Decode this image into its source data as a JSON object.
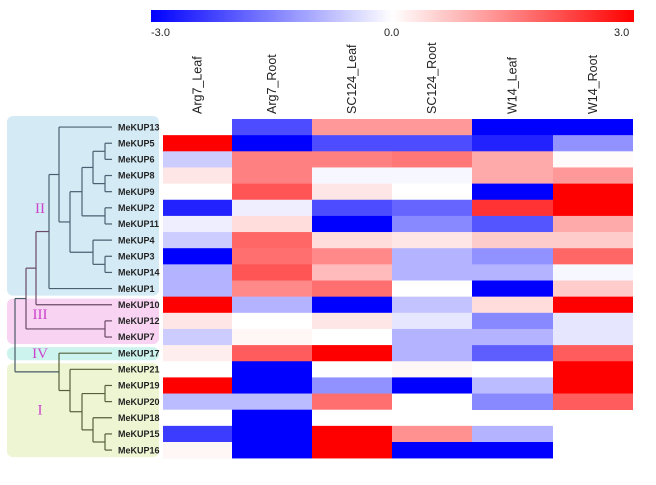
{
  "chart_data": {
    "type": "heatmap",
    "title": "",
    "colorbar": {
      "min": -3.0,
      "max": 3.0,
      "tick_labels": [
        "-3.0",
        "0.0",
        "3.0"
      ],
      "tick_values": [
        -3.0,
        0.0,
        3.0
      ],
      "low_color": "#0000ff",
      "mid_color": "#ffffff",
      "high_color": "#ff0000",
      "placement": "top"
    },
    "columns": [
      "Arg7_Leaf",
      "Arg7_Root",
      "SC124_Leaf",
      "SC124_Root",
      "W14_Leaf",
      "W14_Root"
    ],
    "rows": [
      "MeKUP13",
      "MeKUP5",
      "MeKUP6",
      "MeKUP8",
      "MeKUP9",
      "MeKUP2",
      "MeKUP11",
      "MeKUP4",
      "MeKUP3",
      "MeKUP14",
      "MeKUP1",
      "MeKUP10",
      "MeKUP12",
      "MeKUP7",
      "MeKUP17",
      "MeKUP21",
      "MeKUP19",
      "MeKUP20",
      "MeKUP18",
      "MeKUP15",
      "MeKUP16"
    ],
    "values": [
      [
        null,
        -2.1,
        1.2,
        1.2,
        -3.0,
        -3.0
      ],
      [
        3.0,
        -3.0,
        -2.1,
        -2.1,
        -2.6,
        -1.3
      ],
      [
        -0.6,
        1.5,
        1.5,
        1.6,
        1.0,
        0.05
      ],
      [
        0.3,
        1.5,
        -0.1,
        -0.1,
        1.0,
        1.2
      ],
      [
        0.0,
        2.0,
        0.3,
        0.0,
        -3.0,
        3.0
      ],
      [
        -2.6,
        -0.2,
        -2.1,
        -1.8,
        2.4,
        3.0
      ],
      [
        -0.2,
        0.4,
        -3.0,
        -1.4,
        -2.0,
        1.0
      ],
      [
        -0.6,
        1.8,
        0.4,
        0.3,
        0.6,
        0.6
      ],
      [
        -3.0,
        1.7,
        1.4,
        -0.9,
        -1.3,
        1.8
      ],
      [
        -0.9,
        2.0,
        0.8,
        -0.9,
        -0.9,
        -0.1
      ],
      [
        -0.9,
        1.4,
        1.7,
        0.0,
        -3.0,
        0.6
      ],
      [
        3.0,
        -0.9,
        -3.0,
        -0.7,
        0.4,
        3.0
      ],
      [
        0.3,
        0.0,
        0.3,
        -0.3,
        -1.4,
        -0.3
      ],
      [
        -0.6,
        0.1,
        0.0,
        -0.9,
        -0.9,
        -0.3
      ],
      [
        0.2,
        1.9,
        3.0,
        -0.9,
        -1.9,
        1.9
      ],
      [
        0.0,
        -3.0,
        0.0,
        0.1,
        0.0,
        3.0
      ],
      [
        3.0,
        -3.0,
        -1.3,
        -3.0,
        -0.8,
        3.0
      ],
      [
        -0.8,
        -0.8,
        1.7,
        0.0,
        -1.4,
        1.9
      ],
      [
        0.0,
        -3.0,
        0.0,
        null,
        null,
        null
      ],
      [
        -2.3,
        -3.0,
        3.0,
        1.3,
        -0.9,
        null
      ],
      [
        0.1,
        -3.0,
        3.0,
        -3.0,
        -3.0,
        null
      ]
    ],
    "groups": [
      {
        "label": "II",
        "members": [
          "MeKUP13",
          "MeKUP5",
          "MeKUP6",
          "MeKUP8",
          "MeKUP9",
          "MeKUP2",
          "MeKUP11",
          "MeKUP4",
          "MeKUP3",
          "MeKUP14",
          "MeKUP1"
        ],
        "color": "#d4ebf6"
      },
      {
        "label": "III",
        "members": [
          "MeKUP10",
          "MeKUP12",
          "MeKUP7"
        ],
        "color": "#f8d4f2"
      },
      {
        "label": "IV",
        "members": [
          "MeKUP17"
        ],
        "color": "#cdf3ef"
      },
      {
        "label": "I",
        "members": [
          "MeKUP21",
          "MeKUP19",
          "MeKUP20",
          "MeKUP18",
          "MeKUP15",
          "MeKUP16"
        ],
        "color": "#eef5d2"
      }
    ],
    "group_label_color": "#cc44cc",
    "dendrogram": "row clustering tree on left (phylogenetic)",
    "xlabel": "",
    "ylabel": ""
  }
}
